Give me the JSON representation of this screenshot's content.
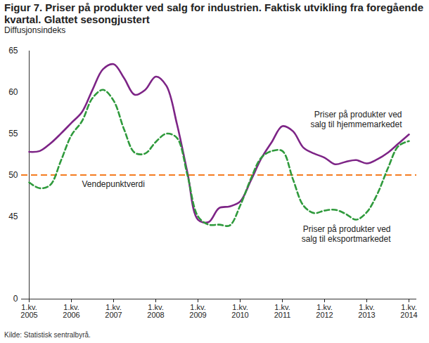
{
  "chart_data": {
    "type": "line",
    "title": "Figur 7. Priser på produkter ved salg for industrien. Faktisk utvikling fra foregående kvartal. Glattet sesongjustert",
    "y_label": "Diffusjonsindeks",
    "source": "Kilde: Statistisk sentralbyrå.",
    "categories": [
      "1.kv.\n2005",
      null,
      null,
      null,
      "1.kv.\n2006",
      null,
      null,
      null,
      "1.kv.\n2007",
      null,
      null,
      null,
      "1.kv.\n2008",
      null,
      null,
      null,
      "1.kv.\n2009",
      null,
      null,
      null,
      "1.kv.\n2010",
      null,
      null,
      null,
      "1.kv.\n2011",
      null,
      null,
      null,
      "1.kv.\n2012",
      null,
      null,
      null,
      "1.kv.\n2013",
      null,
      null,
      null,
      "1.kv.\n2014"
    ],
    "series": [
      {
        "name": "Priser på produkter ved\nsalg til hjemmemarkedet",
        "color": "#7d2486",
        "line_style": "solid",
        "values": [
          52.8,
          52.9,
          53.8,
          55.0,
          56.3,
          57.6,
          60.3,
          62.8,
          63.4,
          61.7,
          59.7,
          60.3,
          61.9,
          60.8,
          56.2,
          50.3,
          44.6,
          44.3,
          46.0,
          46.2,
          46.8,
          49.3,
          52.0,
          54.0,
          55.9,
          55.3,
          53.3,
          52.6,
          52.1,
          51.3,
          51.6,
          51.8,
          51.4,
          51.9,
          52.7,
          53.8,
          54.9
        ]
      },
      {
        "name": "Priser på produkter ved\nsalg til eksportmarkedet",
        "color": "#2f9a3c",
        "line_style": "dashed",
        "values": [
          49.1,
          48.4,
          48.8,
          51.7,
          54.8,
          56.5,
          59.3,
          60.3,
          59.0,
          55.5,
          52.7,
          52.6,
          54.0,
          55.0,
          54.5,
          50.0,
          45.0,
          44.0,
          44.0,
          43.9,
          46.3,
          49.5,
          52.1,
          52.9,
          52.9,
          49.5,
          46.3,
          45.4,
          45.7,
          45.8,
          45.3,
          44.6,
          45.5,
          47.7,
          50.8,
          53.5,
          54.1
        ]
      }
    ],
    "reference_lines": [
      {
        "y": 50,
        "label": "Vendepunktverdi",
        "color": "#f47c20",
        "line_style": "dashed"
      }
    ],
    "ylim": [
      0,
      65
    ],
    "yticks": [
      0,
      45,
      50,
      55,
      60,
      65
    ],
    "grid": false
  }
}
